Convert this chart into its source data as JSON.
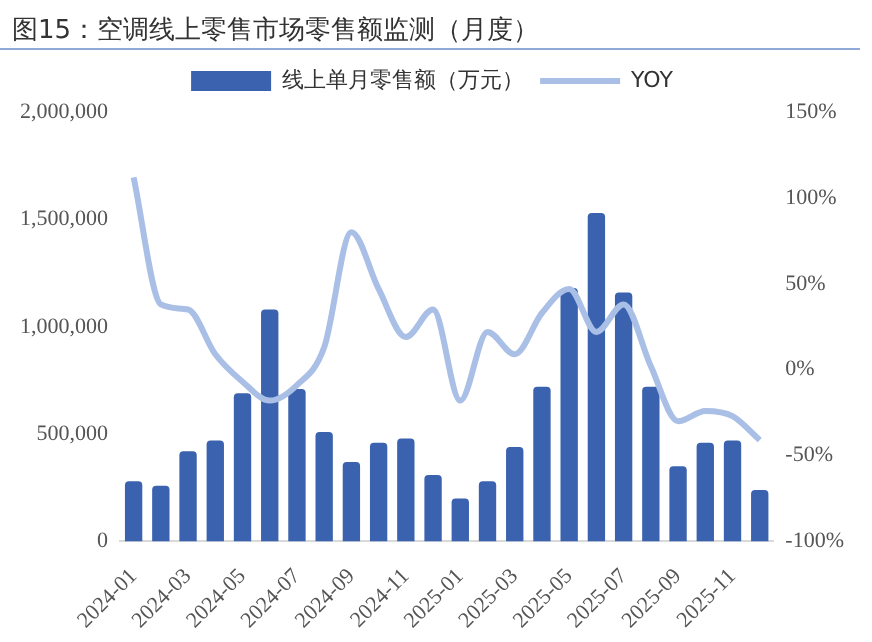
{
  "chart_data": {
    "type": "bar",
    "title": "图15：空调线上零售市场零售额监测（月度）",
    "categories": [
      "2024-01",
      null,
      "2024-03",
      null,
      "2024-05",
      null,
      "2024-07",
      null,
      "2024-09",
      null,
      "2024-11",
      null,
      "2025-01",
      null,
      "2025-03",
      null,
      "2025-05",
      null,
      "2025-07",
      null,
      "2025-09",
      null,
      "2025-11",
      null
    ],
    "series": [
      {
        "name": "线上单月零售额（万元）",
        "color": "#3a62ae",
        "values": [
          280000,
          260000,
          420000,
          470000,
          690000,
          1080000,
          710000,
          510000,
          370000,
          460000,
          480000,
          310000,
          200000,
          280000,
          440000,
          720000,
          1180000,
          1530000,
          1160000,
          720000,
          350000,
          460000,
          470000,
          240000
        ]
      },
      {
        "name": "YOY",
        "type": "line",
        "axis": "y2",
        "color": "#a9bfe6",
        "marker": "none",
        "line_style": "solid",
        "values": [
          112,
          38,
          35,
          9,
          -7,
          -18,
          -9,
          13,
          80,
          47,
          19,
          35,
          -18,
          22,
          9,
          33,
          47,
          22,
          38,
          2,
          -30,
          -24,
          -27,
          -41
        ]
      }
    ],
    "ylim": [
      0,
      2000000
    ],
    "yticks": [
      {
        "value": 0,
        "label": "0"
      },
      {
        "value": 500000,
        "label": "500,000"
      },
      {
        "value": 1000000,
        "label": "1,000,000"
      },
      {
        "value": 1500000,
        "label": "1,500,000"
      },
      {
        "value": 2000000,
        "label": "2,000,000"
      }
    ],
    "y2lim": [
      -100,
      150
    ],
    "y2ticks": [
      {
        "value": -100,
        "label": "-100%"
      },
      {
        "value": -50,
        "label": "-50%"
      },
      {
        "value": 0,
        "label": "0%"
      },
      {
        "value": 50,
        "label": "50%"
      },
      {
        "value": 100,
        "label": "100%"
      },
      {
        "value": 150,
        "label": "150%"
      }
    ],
    "grid": false,
    "legend": "top"
  }
}
